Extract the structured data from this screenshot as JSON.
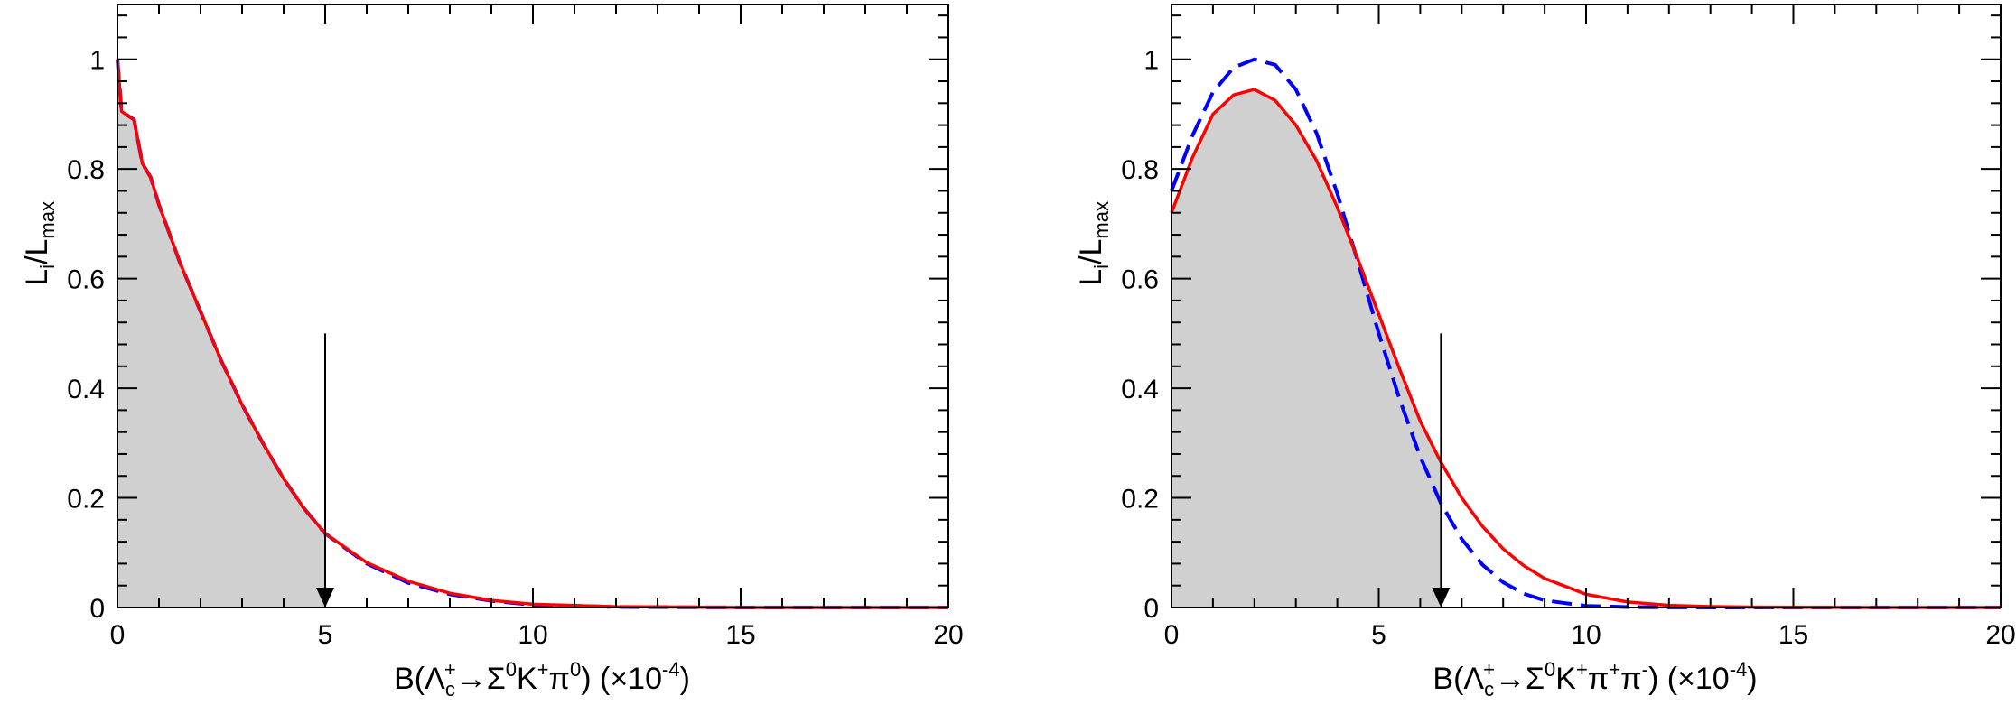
{
  "chart_data": [
    {
      "type": "line",
      "xlabel_parts": [
        "B(Λ",
        "c",
        "+",
        "→Σ",
        "0",
        "K",
        "+",
        "π",
        "0",
        ") (×10",
        "-4",
        ")"
      ],
      "ylabel_parts": [
        "L",
        "i",
        "/L",
        "max"
      ],
      "xlim": [
        0,
        20
      ],
      "ylim": [
        0,
        1.1
      ],
      "xticks": [
        "0",
        "5",
        "10",
        "15",
        "20"
      ],
      "yticks": [
        "0",
        "0.2",
        "0.4",
        "0.6",
        "0.8",
        "1"
      ],
      "upper_limit": {
        "x": 5.0,
        "arrow_top": 0.5
      },
      "series": [
        {
          "style": "blue-dashed",
          "color": "#0000ff",
          "x": [
            0,
            0.1,
            0.2,
            0.4,
            0.6,
            0.8,
            1.0,
            1.5,
            2.0,
            2.5,
            3.0,
            3.5,
            4.0,
            4.5,
            5.0,
            6.0,
            7.0,
            8.0,
            9.0,
            10.0,
            12.0,
            15.0,
            20.0
          ],
          "y": [
            1.0,
            0.905,
            0.9,
            0.89,
            0.81,
            0.785,
            0.735,
            0.63,
            0.54,
            0.45,
            0.37,
            0.3,
            0.235,
            0.18,
            0.135,
            0.08,
            0.045,
            0.024,
            0.012,
            0.005,
            0.001,
            0.0,
            0.0
          ]
        },
        {
          "style": "red-solid",
          "color": "#ff0000",
          "x": [
            0,
            0.1,
            0.2,
            0.4,
            0.6,
            0.8,
            1.0,
            1.5,
            2.0,
            2.5,
            3.0,
            3.5,
            4.0,
            4.5,
            5.0,
            6.0,
            7.0,
            8.0,
            9.0,
            10.0,
            12.0,
            15.0,
            20.0
          ],
          "y": [
            1.0,
            0.905,
            0.9,
            0.89,
            0.81,
            0.785,
            0.735,
            0.63,
            0.54,
            0.45,
            0.37,
            0.3,
            0.235,
            0.18,
            0.135,
            0.082,
            0.048,
            0.026,
            0.013,
            0.006,
            0.0015,
            0.0,
            0.0
          ]
        }
      ]
    },
    {
      "type": "line",
      "xlabel_parts": [
        "B(Λ",
        "c",
        "+",
        "→Σ",
        "0",
        "K",
        "+",
        "π",
        "+",
        "π",
        "-",
        ") (×10",
        "-4",
        ")"
      ],
      "ylabel_parts": [
        "L",
        "i",
        "/L",
        "max"
      ],
      "xlim": [
        0,
        20
      ],
      "ylim": [
        0,
        1.1
      ],
      "xticks": [
        "0",
        "5",
        "10",
        "15",
        "20"
      ],
      "yticks": [
        "0",
        "0.2",
        "0.4",
        "0.6",
        "0.8",
        "1"
      ],
      "upper_limit": {
        "x": 6.5,
        "arrow_top": 0.5
      },
      "series": [
        {
          "style": "blue-dashed",
          "color": "#0000ff",
          "x": [
            0,
            0.5,
            1.0,
            1.5,
            2.0,
            2.5,
            3.0,
            3.5,
            4.0,
            4.5,
            5.0,
            5.5,
            6.0,
            6.5,
            7.0,
            7.5,
            8.0,
            8.5,
            9.0,
            10.0,
            11.0,
            12.0,
            14.0,
            20.0
          ],
          "y": [
            0.76,
            0.86,
            0.94,
            0.985,
            1.0,
            0.99,
            0.945,
            0.865,
            0.755,
            0.63,
            0.5,
            0.38,
            0.275,
            0.19,
            0.125,
            0.078,
            0.046,
            0.025,
            0.013,
            0.003,
            0.0008,
            0.0001,
            0.0,
            0.0
          ]
        },
        {
          "style": "red-solid",
          "color": "#ff0000",
          "x": [
            0,
            0.5,
            1.0,
            1.5,
            2.0,
            2.5,
            3.0,
            3.5,
            4.0,
            4.5,
            5.0,
            5.5,
            6.0,
            6.5,
            7.0,
            7.5,
            8.0,
            8.5,
            9.0,
            10.0,
            11.0,
            12.0,
            13.0,
            14.0,
            15.0,
            16.0,
            17.0,
            18.0,
            20.0
          ],
          "y": [
            0.72,
            0.82,
            0.9,
            0.935,
            0.945,
            0.925,
            0.88,
            0.815,
            0.73,
            0.635,
            0.535,
            0.435,
            0.34,
            0.265,
            0.2,
            0.148,
            0.107,
            0.076,
            0.053,
            0.024,
            0.01,
            0.004,
            0.0017,
            0.0007,
            0.0003,
            0.0001,
            0.0,
            0.0,
            0.0
          ]
        }
      ]
    }
  ]
}
